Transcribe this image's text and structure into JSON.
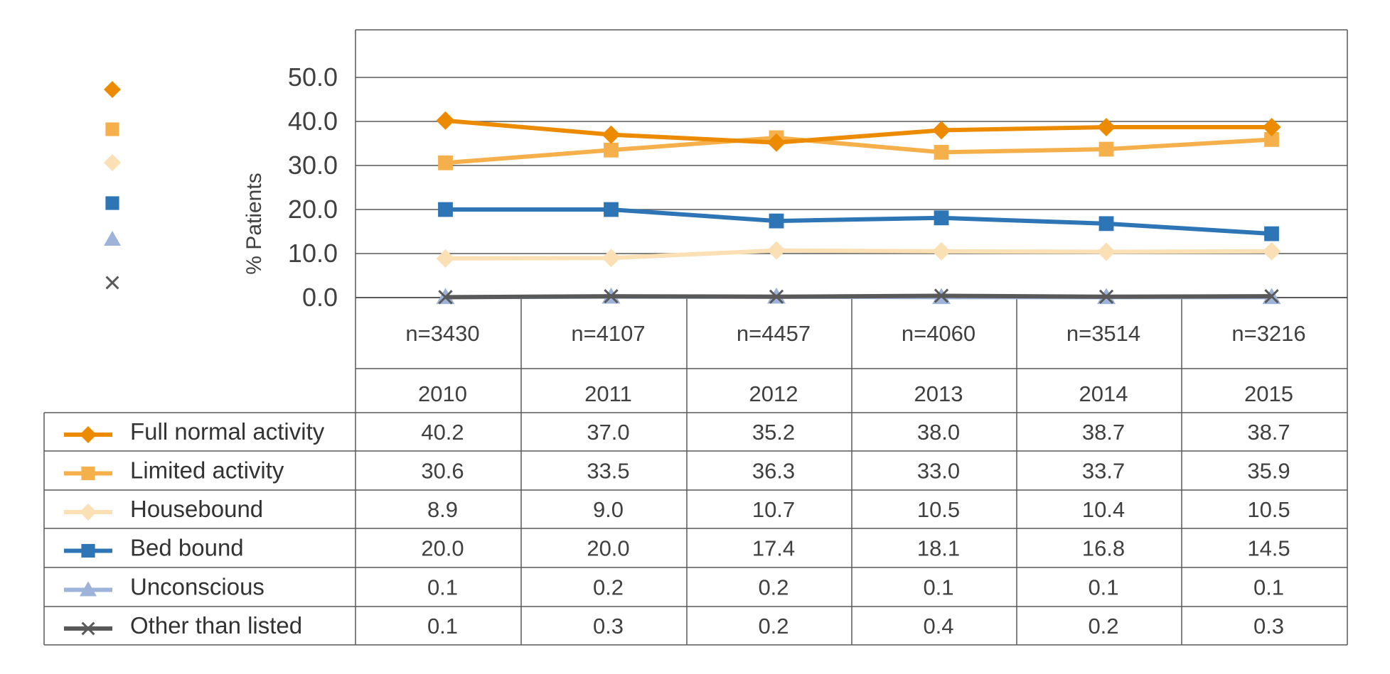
{
  "chart_data": {
    "type": "line",
    "ylabel": "% Patients",
    "ylim": [
      0,
      50
    ],
    "yticks": [
      "0.0",
      "10.0",
      "20.0",
      "30.0",
      "40.0",
      "50.0"
    ],
    "yticks_values": [
      0,
      10,
      20,
      30,
      40,
      50
    ],
    "grid": true,
    "categories": [
      "2010",
      "2011",
      "2012",
      "2013",
      "2014",
      "2015"
    ],
    "n_labels": [
      "n=3430",
      "n=4107",
      "n=4457",
      "n=4060",
      "n=3514",
      "n=3216"
    ],
    "series": [
      {
        "name": "Full normal activity",
        "color": "#ED8B00",
        "marker": "diamond",
        "values": [
          40.2,
          37.0,
          35.2,
          38.0,
          38.7,
          38.7
        ],
        "display": [
          "40.2",
          "37.0",
          "35.2",
          "38.0",
          "38.7",
          "38.7"
        ]
      },
      {
        "name": "Limited activity",
        "color": "#F5B04C",
        "marker": "square",
        "values": [
          30.6,
          33.5,
          36.3,
          33.0,
          33.7,
          35.9
        ],
        "display": [
          "30.6",
          "33.5",
          "36.3",
          "33.0",
          "33.7",
          "35.9"
        ]
      },
      {
        "name": "Housebound",
        "color": "#FAE0B4",
        "marker": "diamond",
        "values": [
          8.9,
          9.0,
          10.7,
          10.5,
          10.4,
          10.5
        ],
        "display": [
          "8.9",
          "9.0",
          "10.7",
          "10.5",
          "10.4",
          "10.5"
        ]
      },
      {
        "name": "Bed bound",
        "color": "#2E75B6",
        "marker": "square",
        "values": [
          20.0,
          20.0,
          17.4,
          18.1,
          16.8,
          14.5
        ],
        "display": [
          "20.0",
          "20.0",
          "17.4",
          "18.1",
          "16.8",
          "14.5"
        ]
      },
      {
        "name": "Unconscious",
        "color": "#9DB3D9",
        "marker": "triangle",
        "values": [
          0.1,
          0.2,
          0.2,
          0.1,
          0.1,
          0.1
        ],
        "display": [
          "0.1",
          "0.2",
          "0.2",
          "0.1",
          "0.1",
          "0.1"
        ]
      },
      {
        "name": "Other than listed",
        "color": "#595959",
        "marker": "x",
        "values": [
          0.1,
          0.3,
          0.2,
          0.4,
          0.2,
          0.3
        ],
        "display": [
          "0.1",
          "0.3",
          "0.2",
          "0.4",
          "0.2",
          "0.3"
        ]
      }
    ]
  }
}
